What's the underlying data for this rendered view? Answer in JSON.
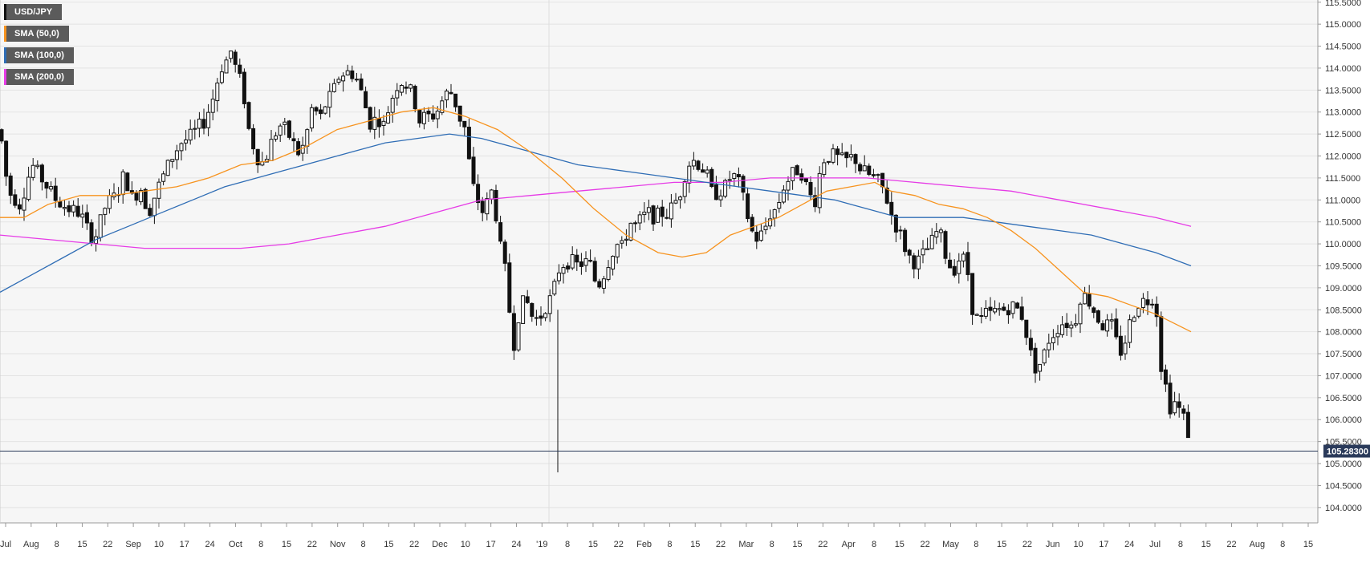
{
  "chart_data": {
    "type": "candlestick",
    "symbol": "USD/JPY",
    "last_price": "105.28300",
    "legend": [
      {
        "label": "USD/JPY",
        "color": "#111111"
      },
      {
        "label": "SMA (50,0)",
        "color": "#f7931e"
      },
      {
        "label": "SMA (100,0)",
        "color": "#2f6db5"
      },
      {
        "label": "SMA (200,0)",
        "color": "#e63be6"
      }
    ],
    "y_axis": {
      "position": "right",
      "ylim": [
        103.65,
        115.55
      ],
      "ticks": [
        "115.5000",
        "115.0000",
        "114.5000",
        "114.0000",
        "113.5000",
        "113.0000",
        "112.5000",
        "112.0000",
        "111.5000",
        "111.0000",
        "110.5000",
        "110.0000",
        "109.5000",
        "109.0000",
        "108.5000",
        "108.0000",
        "107.5000",
        "107.0000",
        "106.5000",
        "106.0000",
        "105.5000",
        "105.0000",
        "104.5000",
        "104.0000"
      ]
    },
    "x_axis": {
      "ticks": [
        "Jul",
        "Aug",
        "8",
        "15",
        "22",
        "Sep",
        "10",
        "17",
        "24",
        "Oct",
        "8",
        "15",
        "22",
        "Nov",
        "8",
        "15",
        "22",
        "Dec",
        "10",
        "17",
        "24",
        "'19",
        "8",
        "15",
        "22",
        "Feb",
        "8",
        "15",
        "22",
        "Mar",
        "8",
        "15",
        "22",
        "Apr",
        "8",
        "15",
        "22",
        "May",
        "8",
        "15",
        "22",
        "Jun",
        "10",
        "17",
        "24",
        "Jul",
        "8",
        "15",
        "22",
        "Aug",
        "8",
        "15"
      ]
    },
    "price_path": [
      [
        0,
        112.6
      ],
      [
        10,
        111.2
      ],
      [
        25,
        110.9
      ],
      [
        40,
        111.8
      ],
      [
        55,
        111.4
      ],
      [
        70,
        111.0
      ],
      [
        85,
        110.8
      ],
      [
        100,
        110.7
      ],
      [
        112,
        110.2
      ],
      [
        120,
        110.2
      ],
      [
        132,
        110.9
      ],
      [
        145,
        111.1
      ],
      [
        155,
        111.6
      ],
      [
        165,
        111.0
      ],
      [
        175,
        111.3
      ],
      [
        185,
        110.7
      ],
      [
        195,
        111.2
      ],
      [
        205,
        111.6
      ],
      [
        215,
        112.0
      ],
      [
        225,
        112.3
      ],
      [
        235,
        112.4
      ],
      [
        245,
        112.6
      ],
      [
        255,
        112.8
      ],
      [
        265,
        113.3
      ],
      [
        275,
        114.0
      ],
      [
        283,
        114.2
      ],
      [
        288,
        114.4
      ],
      [
        295,
        113.9
      ],
      [
        302,
        113.6
      ],
      [
        310,
        112.6
      ],
      [
        318,
        112.1
      ],
      [
        325,
        111.8
      ],
      [
        332,
        112.0
      ],
      [
        340,
        112.4
      ],
      [
        348,
        112.7
      ],
      [
        356,
        112.6
      ],
      [
        365,
        112.3
      ],
      [
        374,
        112.0
      ],
      [
        382,
        112.5
      ],
      [
        390,
        113.2
      ],
      [
        398,
        112.8
      ],
      [
        406,
        113.2
      ],
      [
        414,
        113.4
      ],
      [
        422,
        113.8
      ],
      [
        430,
        113.9
      ],
      [
        438,
        113.9
      ],
      [
        446,
        113.7
      ],
      [
        454,
        113.2
      ],
      [
        462,
        112.7
      ],
      [
        470,
        112.9
      ],
      [
        478,
        112.7
      ],
      [
        486,
        113.2
      ],
      [
        494,
        113.6
      ],
      [
        500,
        113.7
      ],
      [
        508,
        113.6
      ],
      [
        516,
        113.3
      ],
      [
        522,
        112.8
      ],
      [
        530,
        112.9
      ],
      [
        538,
        112.9
      ],
      [
        544,
        113.0
      ],
      [
        552,
        113.3
      ],
      [
        560,
        113.5
      ],
      [
        566,
        113.3
      ],
      [
        572,
        112.9
      ],
      [
        580,
        112.6
      ],
      [
        586,
        111.6
      ],
      [
        592,
        111.1
      ],
      [
        598,
        110.9
      ],
      [
        604,
        110.6
      ],
      [
        610,
        111.3
      ],
      [
        616,
        111.0
      ],
      [
        622,
        110.0
      ],
      [
        628,
        109.6
      ],
      [
        634,
        108.6
      ],
      [
        640,
        107.7
      ],
      [
        648,
        108.6
      ],
      [
        656,
        108.7
      ],
      [
        664,
        108.3
      ],
      [
        672,
        108.3
      ],
      [
        680,
        108.6
      ],
      [
        688,
        108.8
      ],
      [
        696,
        109.4
      ],
      [
        704,
        109.6
      ],
      [
        712,
        109.6
      ],
      [
        720,
        109.5
      ],
      [
        728,
        109.6
      ],
      [
        736,
        109.5
      ],
      [
        744,
        109.0
      ],
      [
        752,
        109.3
      ],
      [
        760,
        109.7
      ],
      [
        768,
        110.0
      ],
      [
        776,
        109.9
      ],
      [
        784,
        110.5
      ],
      [
        792,
        110.4
      ],
      [
        800,
        110.6
      ],
      [
        808,
        110.7
      ],
      [
        816,
        110.6
      ],
      [
        824,
        110.7
      ],
      [
        832,
        110.7
      ],
      [
        840,
        110.9
      ],
      [
        848,
        111.2
      ],
      [
        856,
        111.8
      ],
      [
        864,
        111.9
      ],
      [
        872,
        111.8
      ],
      [
        880,
        111.6
      ],
      [
        888,
        111.1
      ],
      [
        896,
        111.2
      ],
      [
        904,
        111.3
      ],
      [
        912,
        111.6
      ],
      [
        920,
        111.4
      ],
      [
        928,
        110.9
      ],
      [
        936,
        110.3
      ],
      [
        944,
        110.1
      ],
      [
        952,
        110.3
      ],
      [
        960,
        110.7
      ],
      [
        968,
        110.8
      ],
      [
        976,
        111.3
      ],
      [
        984,
        111.5
      ],
      [
        992,
        111.7
      ],
      [
        1000,
        111.6
      ],
      [
        1008,
        111.1
      ],
      [
        1016,
        111.0
      ],
      [
        1024,
        111.9
      ],
      [
        1032,
        112.0
      ],
      [
        1040,
        112.0
      ],
      [
        1048,
        111.9
      ],
      [
        1056,
        111.9
      ],
      [
        1064,
        112.0
      ],
      [
        1072,
        111.7
      ],
      [
        1080,
        111.6
      ],
      [
        1088,
        111.5
      ],
      [
        1096,
        111.4
      ],
      [
        1104,
        111.1
      ],
      [
        1108,
        110.8
      ],
      [
        1114,
        110.5
      ],
      [
        1120,
        110.3
      ],
      [
        1128,
        109.9
      ],
      [
        1136,
        109.6
      ],
      [
        1144,
        109.6
      ],
      [
        1152,
        109.8
      ],
      [
        1160,
        110.0
      ],
      [
        1168,
        110.3
      ],
      [
        1174,
        110.1
      ],
      [
        1180,
        109.6
      ],
      [
        1188,
        109.4
      ],
      [
        1196,
        109.7
      ],
      [
        1204,
        109.6
      ],
      [
        1212,
        108.5
      ],
      [
        1220,
        108.2
      ],
      [
        1228,
        108.4
      ],
      [
        1236,
        108.4
      ],
      [
        1244,
        108.5
      ],
      [
        1252,
        108.5
      ],
      [
        1260,
        108.6
      ],
      [
        1268,
        108.5
      ],
      [
        1276,
        108.3
      ],
      [
        1282,
        107.6
      ],
      [
        1290,
        107.2
      ],
      [
        1298,
        107.3
      ],
      [
        1306,
        107.8
      ],
      [
        1314,
        108.0
      ],
      [
        1322,
        108.2
      ],
      [
        1330,
        108.2
      ],
      [
        1338,
        108.1
      ],
      [
        1346,
        108.8
      ],
      [
        1354,
        108.8
      ],
      [
        1360,
        108.6
      ],
      [
        1368,
        108.3
      ],
      [
        1376,
        108.1
      ],
      [
        1384,
        108.2
      ],
      [
        1390,
        107.8
      ],
      [
        1398,
        107.5
      ],
      [
        1406,
        108.1
      ],
      [
        1414,
        108.5
      ],
      [
        1420,
        108.7
      ],
      [
        1428,
        108.7
      ],
      [
        1436,
        108.8
      ],
      [
        1442,
        108.4
      ],
      [
        1446,
        107.3
      ],
      [
        1452,
        106.8
      ],
      [
        1458,
        106.3
      ],
      [
        1464,
        106.4
      ],
      [
        1470,
        106.2
      ],
      [
        1476,
        106.0
      ],
      [
        1482,
        105.6
      ],
      [
        1484,
        105.3
      ]
    ],
    "sma_50": [
      [
        0,
        110.6
      ],
      [
        30,
        110.6
      ],
      [
        60,
        110.9
      ],
      [
        100,
        111.1
      ],
      [
        140,
        111.1
      ],
      [
        180,
        111.2
      ],
      [
        220,
        111.3
      ],
      [
        260,
        111.5
      ],
      [
        300,
        111.8
      ],
      [
        340,
        111.9
      ],
      [
        380,
        112.2
      ],
      [
        420,
        112.6
      ],
      [
        460,
        112.8
      ],
      [
        500,
        113.0
      ],
      [
        540,
        113.1
      ],
      [
        580,
        112.9
      ],
      [
        620,
        112.6
      ],
      [
        660,
        112.1
      ],
      [
        700,
        111.5
      ],
      [
        740,
        110.8
      ],
      [
        780,
        110.2
      ],
      [
        820,
        109.8
      ],
      [
        850,
        109.7
      ],
      [
        880,
        109.8
      ],
      [
        910,
        110.2
      ],
      [
        940,
        110.4
      ],
      [
        970,
        110.6
      ],
      [
        1000,
        110.9
      ],
      [
        1030,
        111.2
      ],
      [
        1060,
        111.3
      ],
      [
        1090,
        111.4
      ],
      [
        1110,
        111.2
      ],
      [
        1140,
        111.1
      ],
      [
        1170,
        110.9
      ],
      [
        1200,
        110.8
      ],
      [
        1230,
        110.6
      ],
      [
        1260,
        110.3
      ],
      [
        1290,
        109.9
      ],
      [
        1320,
        109.4
      ],
      [
        1350,
        108.9
      ],
      [
        1380,
        108.8
      ],
      [
        1410,
        108.6
      ],
      [
        1440,
        108.4
      ],
      [
        1484,
        108.0
      ]
    ],
    "sma_100": [
      [
        0,
        108.9
      ],
      [
        40,
        109.3
      ],
      [
        80,
        109.7
      ],
      [
        120,
        110.1
      ],
      [
        160,
        110.4
      ],
      [
        200,
        110.7
      ],
      [
        240,
        111.0
      ],
      [
        280,
        111.3
      ],
      [
        320,
        111.5
      ],
      [
        360,
        111.7
      ],
      [
        400,
        111.9
      ],
      [
        440,
        112.1
      ],
      [
        480,
        112.3
      ],
      [
        520,
        112.4
      ],
      [
        560,
        112.5
      ],
      [
        600,
        112.4
      ],
      [
        640,
        112.2
      ],
      [
        680,
        112.0
      ],
      [
        720,
        111.8
      ],
      [
        760,
        111.7
      ],
      [
        800,
        111.6
      ],
      [
        840,
        111.5
      ],
      [
        880,
        111.4
      ],
      [
        920,
        111.3
      ],
      [
        960,
        111.2
      ],
      [
        1000,
        111.1
      ],
      [
        1040,
        111.0
      ],
      [
        1080,
        110.8
      ],
      [
        1120,
        110.6
      ],
      [
        1160,
        110.6
      ],
      [
        1200,
        110.6
      ],
      [
        1240,
        110.5
      ],
      [
        1280,
        110.4
      ],
      [
        1320,
        110.3
      ],
      [
        1360,
        110.2
      ],
      [
        1400,
        110.0
      ],
      [
        1440,
        109.8
      ],
      [
        1484,
        109.5
      ]
    ],
    "sma_200": [
      [
        0,
        110.2
      ],
      [
        60,
        110.1
      ],
      [
        120,
        110.0
      ],
      [
        180,
        109.9
      ],
      [
        240,
        109.9
      ],
      [
        300,
        109.9
      ],
      [
        360,
        110.0
      ],
      [
        420,
        110.2
      ],
      [
        480,
        110.4
      ],
      [
        540,
        110.7
      ],
      [
        600,
        111.0
      ],
      [
        660,
        111.1
      ],
      [
        720,
        111.2
      ],
      [
        780,
        111.3
      ],
      [
        840,
        111.4
      ],
      [
        900,
        111.4
      ],
      [
        960,
        111.5
      ],
      [
        1020,
        111.5
      ],
      [
        1080,
        111.5
      ],
      [
        1140,
        111.4
      ],
      [
        1200,
        111.3
      ],
      [
        1260,
        111.2
      ],
      [
        1320,
        111.0
      ],
      [
        1380,
        110.8
      ],
      [
        1440,
        110.6
      ],
      [
        1484,
        110.4
      ]
    ]
  }
}
